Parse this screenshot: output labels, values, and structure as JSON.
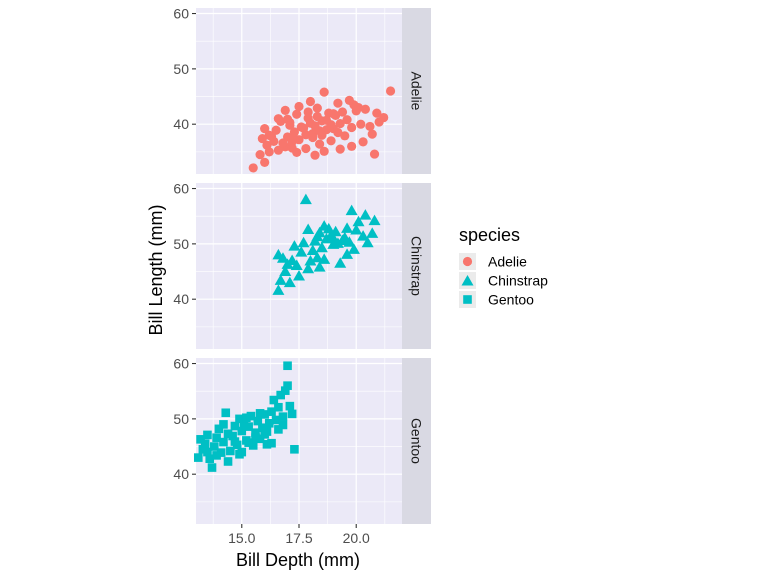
{
  "chart_data": {
    "type": "scatter",
    "facet": "rows",
    "xlabel": "Bill Depth (mm)",
    "ylabel": "Bill Length (mm)",
    "xlim": [
      13.0,
      22.0
    ],
    "ylim": [
      31.0,
      61.0
    ],
    "xticks": [
      15.0,
      17.5,
      20.0
    ],
    "xtick_labels": [
      "15.0",
      "17.5",
      "20.0"
    ],
    "yticks": [
      40,
      50,
      60
    ],
    "ytick_labels": [
      "40",
      "50",
      "60"
    ],
    "grid": true,
    "legend": {
      "title": "species",
      "placement": "right",
      "entries": [
        {
          "label": "Adelie",
          "shape": "circle",
          "color": "#F8766D"
        },
        {
          "label": "Chinstrap",
          "shape": "triangle",
          "color": "#00BFC4"
        },
        {
          "label": "Gentoo",
          "shape": "square",
          "color": "#00BFC4"
        }
      ]
    },
    "panels": [
      {
        "strip": "Adelie",
        "color": "#F8766D",
        "shape": "circle",
        "points": [
          [
            15.5,
            32.1
          ],
          [
            16.0,
            33.1
          ],
          [
            15.8,
            34.5
          ],
          [
            16.2,
            35.0
          ],
          [
            16.6,
            35.3
          ],
          [
            16.9,
            35.9
          ],
          [
            16.1,
            36.2
          ],
          [
            16.8,
            36.6
          ],
          [
            17.2,
            36.8
          ],
          [
            17.5,
            37.2
          ],
          [
            17.0,
            37.7
          ],
          [
            16.3,
            37.8
          ],
          [
            17.8,
            38.1
          ],
          [
            18.1,
            38.3
          ],
          [
            17.3,
            38.6
          ],
          [
            18.4,
            38.8
          ],
          [
            18.7,
            39.0
          ],
          [
            19.0,
            39.2
          ],
          [
            17.6,
            39.5
          ],
          [
            18.2,
            39.7
          ],
          [
            18.9,
            39.9
          ],
          [
            19.3,
            40.1
          ],
          [
            17.1,
            40.3
          ],
          [
            18.5,
            40.6
          ],
          [
            19.6,
            40.8
          ],
          [
            17.9,
            41.1
          ],
          [
            18.3,
            41.4
          ],
          [
            19.1,
            41.6
          ],
          [
            17.4,
            41.8
          ],
          [
            18.8,
            42.0
          ],
          [
            19.4,
            42.2
          ],
          [
            16.7,
            40.5
          ],
          [
            20.0,
            42.4
          ],
          [
            20.4,
            42.7
          ],
          [
            21.2,
            41.2
          ],
          [
            20.6,
            39.6
          ],
          [
            21.5,
            46.0
          ],
          [
            18.6,
            45.8
          ],
          [
            19.9,
            43.5
          ],
          [
            20.7,
            38.2
          ],
          [
            20.8,
            34.6
          ],
          [
            19.8,
            36.0
          ],
          [
            18.0,
            44.1
          ],
          [
            17.7,
            39.3
          ],
          [
            19.2,
            38.5
          ],
          [
            18.4,
            36.4
          ],
          [
            17.2,
            35.7
          ],
          [
            16.4,
            36.9
          ],
          [
            15.9,
            37.4
          ],
          [
            16.5,
            38.9
          ],
          [
            17.0,
            40.9
          ],
          [
            18.1,
            37.6
          ],
          [
            19.5,
            37.9
          ],
          [
            20.2,
            40.0
          ],
          [
            18.6,
            35.1
          ],
          [
            17.8,
            35.6
          ],
          [
            16.2,
            38.0
          ],
          [
            19.0,
            41.9
          ],
          [
            20.1,
            43.0
          ],
          [
            21.0,
            40.4
          ],
          [
            18.3,
            42.9
          ],
          [
            17.5,
            43.2
          ],
          [
            16.9,
            42.5
          ],
          [
            19.7,
            44.3
          ],
          [
            18.9,
            37.0
          ],
          [
            18.2,
            34.4
          ],
          [
            17.4,
            34.9
          ],
          [
            19.3,
            35.5
          ],
          [
            20.3,
            36.8
          ],
          [
            16.0,
            39.2
          ],
          [
            17.1,
            39.8
          ],
          [
            18.7,
            40.7
          ],
          [
            19.2,
            43.8
          ],
          [
            17.9,
            42.2
          ],
          [
            16.6,
            41.0
          ],
          [
            18.5,
            38.0
          ],
          [
            17.3,
            37.3
          ],
          [
            19.8,
            39.4
          ],
          [
            20.9,
            42.0
          ],
          [
            18.0,
            40.2
          ]
        ]
      },
      {
        "strip": "Chinstrap",
        "color": "#00BFC4",
        "shape": "triangle",
        "points": [
          [
            16.6,
            41.6
          ],
          [
            16.7,
            43.4
          ],
          [
            16.9,
            45.0
          ],
          [
            17.0,
            46.3
          ],
          [
            16.8,
            47.4
          ],
          [
            16.6,
            48.0
          ],
          [
            17.2,
            47.0
          ],
          [
            17.4,
            46.1
          ],
          [
            17.5,
            44.2
          ],
          [
            17.6,
            48.5
          ],
          [
            17.3,
            49.6
          ],
          [
            17.7,
            50.2
          ],
          [
            17.8,
            58.0
          ],
          [
            17.9,
            45.5
          ],
          [
            18.0,
            46.9
          ],
          [
            18.1,
            48.8
          ],
          [
            18.2,
            50.5
          ],
          [
            18.3,
            51.3
          ],
          [
            18.4,
            52.0
          ],
          [
            18.5,
            49.3
          ],
          [
            18.6,
            47.2
          ],
          [
            18.7,
            50.9
          ],
          [
            18.8,
            52.7
          ],
          [
            18.9,
            51.5
          ],
          [
            19.0,
            49.9
          ],
          [
            19.1,
            52.2
          ],
          [
            19.2,
            50.1
          ],
          [
            19.3,
            46.5
          ],
          [
            19.4,
            50.6
          ],
          [
            19.5,
            51.1
          ],
          [
            19.6,
            52.8
          ],
          [
            19.7,
            50.3
          ],
          [
            19.8,
            56.0
          ],
          [
            19.9,
            49.0
          ],
          [
            20.0,
            52.5
          ],
          [
            20.1,
            54.0
          ],
          [
            20.3,
            51.4
          ],
          [
            20.5,
            50.2
          ],
          [
            20.7,
            51.9
          ],
          [
            20.8,
            54.2
          ],
          [
            19.6,
            48.1
          ],
          [
            18.4,
            45.8
          ],
          [
            17.9,
            52.6
          ],
          [
            18.6,
            53.2
          ],
          [
            19.0,
            51.0
          ],
          [
            20.4,
            55.2
          ],
          [
            17.1,
            43.0
          ],
          [
            18.3,
            47.5
          ]
        ]
      },
      {
        "strip": "Gentoo",
        "color": "#00BFC4",
        "shape": "square",
        "points": [
          [
            13.1,
            43.0
          ],
          [
            13.2,
            46.3
          ],
          [
            13.3,
            44.5
          ],
          [
            13.4,
            45.5
          ],
          [
            13.5,
            47.1
          ],
          [
            13.6,
            42.8
          ],
          [
            13.7,
            41.2
          ],
          [
            13.8,
            45.0
          ],
          [
            13.9,
            46.6
          ],
          [
            14.0,
            48.2
          ],
          [
            14.1,
            43.9
          ],
          [
            14.2,
            45.8
          ],
          [
            14.3,
            51.1
          ],
          [
            14.4,
            47.3
          ],
          [
            14.5,
            44.2
          ],
          [
            14.6,
            46.9
          ],
          [
            14.7,
            48.7
          ],
          [
            14.8,
            45.3
          ],
          [
            14.9,
            50.0
          ],
          [
            15.0,
            47.8
          ],
          [
            15.1,
            49.1
          ],
          [
            15.2,
            46.1
          ],
          [
            15.3,
            48.6
          ],
          [
            15.4,
            50.5
          ],
          [
            15.5,
            45.2
          ],
          [
            15.6,
            47.5
          ],
          [
            15.7,
            49.6
          ],
          [
            15.8,
            46.4
          ],
          [
            15.9,
            48.4
          ],
          [
            16.0,
            50.8
          ],
          [
            16.1,
            47.7
          ],
          [
            16.2,
            49.2
          ],
          [
            16.3,
            51.3
          ],
          [
            16.4,
            53.4
          ],
          [
            16.5,
            49.8
          ],
          [
            16.6,
            52.1
          ],
          [
            16.7,
            54.3
          ],
          [
            16.8,
            50.4
          ],
          [
            16.9,
            55.1
          ],
          [
            17.0,
            56.0
          ],
          [
            17.0,
            59.6
          ],
          [
            17.1,
            52.3
          ],
          [
            17.2,
            50.9
          ],
          [
            17.3,
            44.5
          ],
          [
            16.1,
            45.4
          ],
          [
            15.0,
            44.0
          ],
          [
            14.4,
            42.3
          ],
          [
            13.9,
            43.4
          ],
          [
            15.6,
            46.6
          ],
          [
            16.6,
            48.1
          ],
          [
            14.7,
            45.9
          ],
          [
            15.3,
            45.7
          ],
          [
            16.0,
            47.2
          ],
          [
            16.8,
            48.9
          ],
          [
            13.5,
            44.0
          ],
          [
            14.9,
            43.6
          ],
          [
            15.8,
            51.0
          ],
          [
            16.3,
            45.6
          ],
          [
            14.2,
            49.0
          ],
          [
            15.2,
            50.2
          ]
        ]
      }
    ]
  }
}
